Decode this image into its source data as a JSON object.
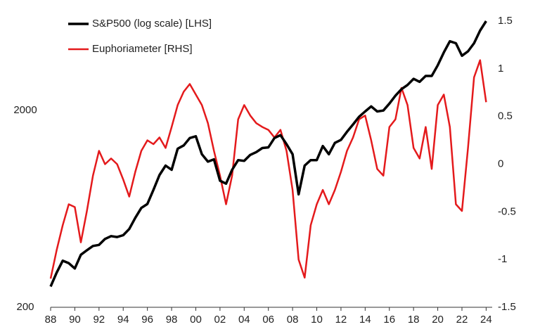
{
  "chart_data": {
    "type": "line",
    "x": [
      1988,
      1988.5,
      1989,
      1989.5,
      1990,
      1990.5,
      1991,
      1991.5,
      1992,
      1992.5,
      1993,
      1993.5,
      1994,
      1994.5,
      1995,
      1995.5,
      1996,
      1996.5,
      1997,
      1997.5,
      1998,
      1998.5,
      1999,
      1999.5,
      2000,
      2000.5,
      2001,
      2001.5,
      2002,
      2002.5,
      2003,
      2003.5,
      2004,
      2004.5,
      2005,
      2005.5,
      2006,
      2006.5,
      2007,
      2007.5,
      2008,
      2008.5,
      2009,
      2009.5,
      2010,
      2010.5,
      2011,
      2011.5,
      2012,
      2012.5,
      2013,
      2013.5,
      2014,
      2014.5,
      2015,
      2015.5,
      2016,
      2016.5,
      2017,
      2017.5,
      2018,
      2018.5,
      2019,
      2019.5,
      2020,
      2020.5,
      2021,
      2021.5,
      2022,
      2022.5,
      2023,
      2023.5,
      2024
    ],
    "series": [
      {
        "name": "Euphoriameter [RHS]",
        "color": "#e41a1c",
        "axis": "y2",
        "values": [
          -1.2,
          -0.9,
          -0.64,
          -0.42,
          -0.45,
          -0.82,
          -0.49,
          -0.12,
          0.14,
          0,
          0.06,
          0,
          -0.16,
          -0.34,
          -0.08,
          0.14,
          0.25,
          0.21,
          0.28,
          0.17,
          0.39,
          0.62,
          0.76,
          0.84,
          0.73,
          0.62,
          0.43,
          0.14,
          -0.12,
          -0.42,
          -0.12,
          0.47,
          0.62,
          0.51,
          0.43,
          0.39,
          0.36,
          0.28,
          0.36,
          0.14,
          -0.27,
          -1.0,
          -1.19,
          -0.64,
          -0.42,
          -0.27,
          -0.42,
          -0.27,
          -0.08,
          0.14,
          0.28,
          0.47,
          0.51,
          0.25,
          -0.05,
          -0.12,
          0.39,
          0.47,
          0.8,
          0.62,
          0.17,
          0.06,
          0.39,
          -0.05,
          0.62,
          0.73,
          0.39,
          -0.42,
          -0.49,
          0.17,
          0.91,
          1.09,
          0.65
        ]
      },
      {
        "name": "S&P500 (log scale) [LHS]",
        "color": "#000000",
        "axis": "y",
        "values": [
          255,
          300,
          345,
          335,
          315,
          370,
          390,
          410,
          415,
          445,
          460,
          455,
          465,
          500,
          570,
          640,
          670,
          790,
          940,
          1050,
          1000,
          1280,
          1330,
          1450,
          1480,
          1200,
          1100,
          1130,
          880,
          850,
          1000,
          1120,
          1110,
          1190,
          1230,
          1290,
          1300,
          1450,
          1500,
          1350,
          1200,
          750,
          1050,
          1120,
          1120,
          1320,
          1200,
          1370,
          1420,
          1560,
          1700,
          1860,
          1980,
          2100,
          1980,
          2000,
          2170,
          2380,
          2570,
          2700,
          2900,
          2800,
          3000,
          3000,
          3400,
          3950,
          4500,
          4400,
          3800,
          4000,
          4400,
          5100,
          5700
        ]
      }
    ],
    "xlim": [
      1988,
      2024.5
    ],
    "xticks": [
      {
        "value": 1988,
        "label": "88"
      },
      {
        "value": 1990,
        "label": "90"
      },
      {
        "value": 1992,
        "label": "92"
      },
      {
        "value": 1994,
        "label": "94"
      },
      {
        "value": 1996,
        "label": "96"
      },
      {
        "value": 1998,
        "label": "98"
      },
      {
        "value": 2000,
        "label": "00"
      },
      {
        "value": 2002,
        "label": "02"
      },
      {
        "value": 2004,
        "label": "04"
      },
      {
        "value": 2006,
        "label": "06"
      },
      {
        "value": 2008,
        "label": "08"
      },
      {
        "value": 2010,
        "label": "10"
      },
      {
        "value": 2012,
        "label": "12"
      },
      {
        "value": 2014,
        "label": "14"
      },
      {
        "value": 2016,
        "label": "16"
      },
      {
        "value": 2018,
        "label": "18"
      },
      {
        "value": 2020,
        "label": "20"
      },
      {
        "value": 2022,
        "label": "22"
      },
      {
        "value": 2024,
        "label": "24"
      }
    ],
    "ylim": [
      200,
      5700
    ],
    "yticks": [
      200,
      2000
    ],
    "log_scale": true,
    "y2lim": [
      -1.5,
      1.5
    ],
    "y2ticks": [
      -1.5,
      -1,
      -0.5,
      0,
      0.5,
      1,
      1.5
    ],
    "grid": false,
    "legend": "upper left"
  }
}
